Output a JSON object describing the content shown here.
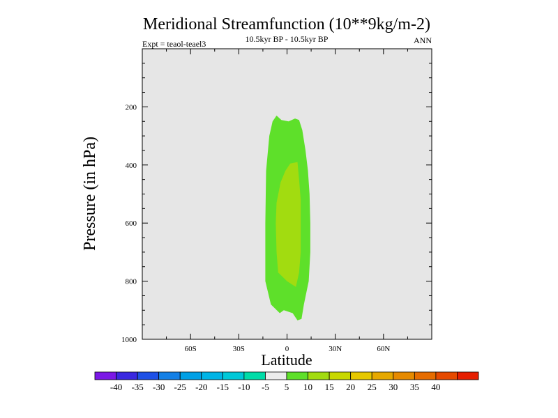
{
  "chart_data": {
    "type": "contour",
    "title": "Meridional Streamfunction (10**9kg/m-2)",
    "subtitle": "10.5kyr BP - 10.5kyr BP",
    "left_label": "Expt = teaol-teael3",
    "right_label": "ANN",
    "xlabel": "Latitude",
    "ylabel": "Pressure (in hPa)",
    "xlim": [
      -90,
      90
    ],
    "ylim": [
      1000,
      0
    ],
    "background_color": "#e6e6e6",
    "x_ticks": [
      {
        "value": -60,
        "label": "60S"
      },
      {
        "value": -30,
        "label": "30S"
      },
      {
        "value": 0,
        "label": "0"
      },
      {
        "value": 30,
        "label": "30N"
      },
      {
        "value": 60,
        "label": "60N"
      }
    ],
    "y_ticks": [
      {
        "value": 200,
        "label": "200"
      },
      {
        "value": 400,
        "label": "400"
      },
      {
        "value": 600,
        "label": "600"
      },
      {
        "value": 800,
        "label": "800"
      },
      {
        "value": 1000,
        "label": "1000"
      }
    ],
    "contours": [
      {
        "level": "5 to 10",
        "color": "#5ee02a",
        "points": [
          [
            -6.5,
            230
          ],
          [
            -3.5,
            245
          ],
          [
            1.0,
            250
          ],
          [
            5.0,
            240
          ],
          [
            7.5,
            245
          ],
          [
            9.5,
            280
          ],
          [
            11.5,
            350
          ],
          [
            13.0,
            420
          ],
          [
            14.0,
            500
          ],
          [
            14.5,
            600
          ],
          [
            14.5,
            700
          ],
          [
            13.5,
            800
          ],
          [
            10.5,
            880
          ],
          [
            9.0,
            930
          ],
          [
            6.5,
            935
          ],
          [
            3.5,
            910
          ],
          [
            -2.0,
            900
          ],
          [
            -4.5,
            910
          ],
          [
            -10.0,
            880
          ],
          [
            -13.5,
            800
          ],
          [
            -13.5,
            600
          ],
          [
            -13.0,
            420
          ],
          [
            -11.0,
            300
          ],
          [
            -9.0,
            250
          ]
        ]
      },
      {
        "level": "10 to 15",
        "color": "#a2dc10",
        "points": [
          [
            2.0,
            395
          ],
          [
            6.5,
            390
          ],
          [
            7.5,
            450
          ],
          [
            8.5,
            520
          ],
          [
            8.5,
            640
          ],
          [
            8.5,
            700
          ],
          [
            7.5,
            770
          ],
          [
            5.5,
            820
          ],
          [
            0.0,
            800
          ],
          [
            -5.5,
            770
          ],
          [
            -6.5,
            700
          ],
          [
            -7.0,
            600
          ],
          [
            -6.5,
            530
          ],
          [
            -4.0,
            460
          ],
          [
            -1.0,
            420
          ]
        ]
      }
    ],
    "colorbar": {
      "colors": [
        "#7b18e6",
        "#3a28e0",
        "#1e50e6",
        "#1480e6",
        "#00a0e6",
        "#00b4e6",
        "#00c8d8",
        "#00dca8",
        "#ececec",
        "#5ee02a",
        "#a2dc10",
        "#c8d800",
        "#e6c800",
        "#e6a800",
        "#e68a00",
        "#e66c00",
        "#e64a00",
        "#e61e00"
      ],
      "labels": [
        "-40",
        "-35",
        "-30",
        "-25",
        "-20",
        "-15",
        "-10",
        "-5",
        "5",
        "10",
        "15",
        "20",
        "25",
        "30",
        "35",
        "40"
      ]
    }
  }
}
